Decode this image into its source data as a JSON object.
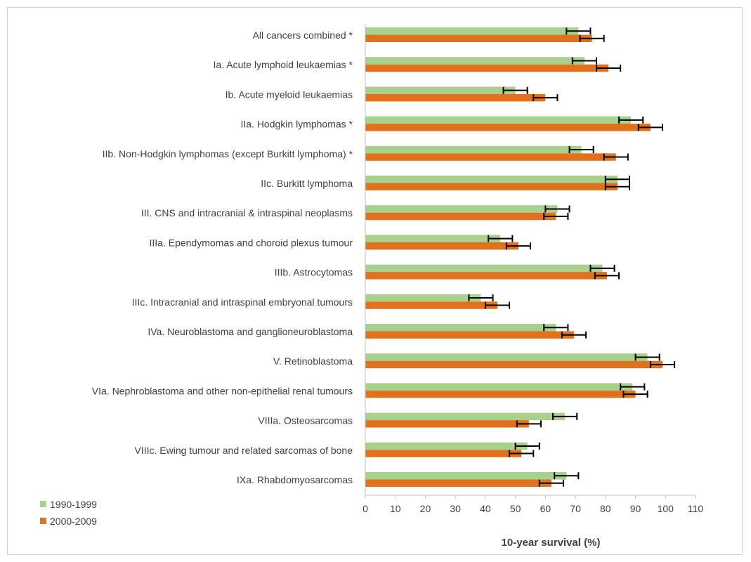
{
  "chart_data": {
    "type": "bar",
    "orientation": "horizontal",
    "xlabel": "10-year survival (%)",
    "xlim": [
      0,
      110
    ],
    "xticks": [
      0,
      10,
      20,
      30,
      40,
      50,
      60,
      70,
      80,
      90,
      100,
      110
    ],
    "grid": false,
    "legend_position": "bottom-left",
    "categories": [
      "All cancers combined *",
      "Ia. Acute lymphoid leukaemias *",
      "Ib. Acute myeloid leukaemias",
      "IIa. Hodgkin lymphomas *",
      "IIb. Non-Hodgkin lymphomas (except Burkitt lymphoma) *",
      "IIc. Burkitt lymphoma",
      "III. CNS and  intracranial & intraspinal neoplasms",
      "IIIa. Ependymomas and choroid plexus tumour",
      "IIIb. Astrocytomas",
      "IIIc. Intracranial and intraspinal embryonal tumours",
      "IVa. Neuroblastoma and ganglioneuroblastoma",
      "V. Retinoblastoma",
      "VIa. Nephroblastoma and other non-epithelial renal tumours",
      "VIIIa. Osteosarcomas",
      "VIIIc. Ewing tumour and related sarcomas of bone",
      "IXa. Rhabdomyosarcomas"
    ],
    "series": [
      {
        "name": "1990-1999",
        "color": "#a9d18e",
        "values": [
          71,
          73,
          50,
          88.5,
          72,
          84,
          64,
          45,
          79,
          38.5,
          63.5,
          94,
          89,
          66.5,
          54,
          67
        ],
        "err_low": [
          67,
          69,
          46,
          84.5,
          68,
          80,
          60,
          41,
          75,
          34.5,
          59.5,
          90,
          85,
          62.5,
          50,
          63
        ],
        "err_high": [
          75,
          77,
          54,
          92.5,
          76,
          88,
          68,
          49,
          83,
          42.5,
          67.5,
          98,
          93,
          70.5,
          58,
          71
        ]
      },
      {
        "name": "2000-2009",
        "color": "#e2711d",
        "values": [
          75.5,
          81,
          60,
          95,
          83.5,
          84,
          63.5,
          51,
          80.5,
          44,
          69.5,
          99,
          90,
          54.5,
          52,
          62
        ],
        "err_low": [
          71.5,
          77,
          56,
          91,
          79.5,
          80,
          59.5,
          47,
          76.5,
          40,
          65.5,
          95,
          86,
          50.5,
          48,
          58
        ],
        "err_high": [
          79.5,
          85,
          64,
          99,
          87.5,
          88,
          67.5,
          55,
          84.5,
          48,
          73.5,
          103,
          94,
          58.5,
          56,
          66
        ]
      }
    ]
  }
}
